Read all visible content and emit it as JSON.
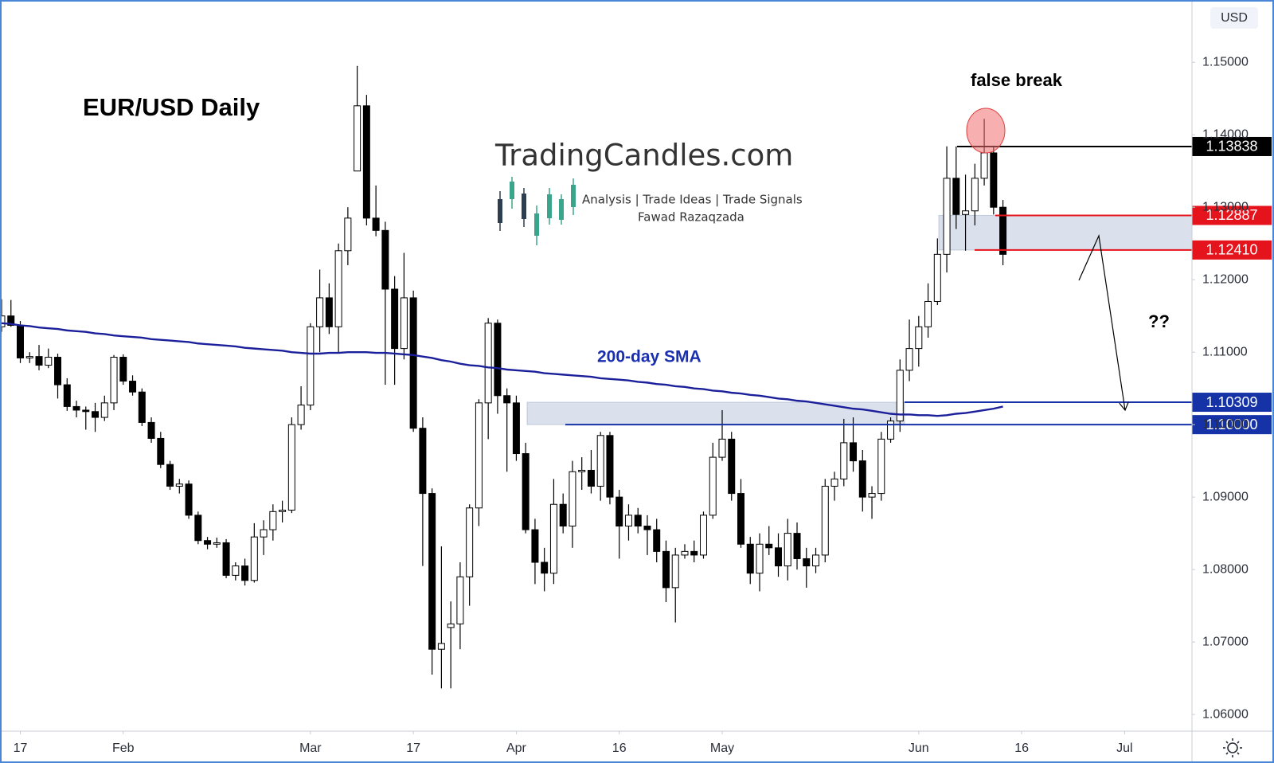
{
  "chart_data": {
    "type": "candlestick",
    "title": "EUR/USD Daily",
    "currency": "USD",
    "watermark": {
      "brand": "TradingCandles.com",
      "tagline": "Analysis | Trade Ideas | Trade Signals",
      "author": "Fawad Razaqzada"
    },
    "annotations": [
      {
        "text": "false break"
      },
      {
        "text": "??"
      }
    ],
    "up_color": "#ffffff",
    "down_color": "#000000",
    "x": [
      -2,
      -1,
      0,
      1,
      2,
      3,
      4,
      5,
      6,
      7,
      8,
      9,
      10,
      11,
      12,
      13,
      14,
      15,
      16,
      17,
      18,
      19,
      20,
      21,
      22,
      23,
      24,
      25,
      26,
      27,
      28,
      29,
      30,
      31,
      32,
      33,
      34,
      35,
      36,
      37,
      38,
      39,
      40,
      41,
      42,
      43,
      44,
      45,
      46,
      47,
      48,
      49,
      50,
      51,
      52,
      53,
      54,
      55,
      56,
      57,
      58,
      59,
      60,
      61,
      62,
      63,
      64,
      65,
      66,
      67,
      68,
      69,
      70,
      71,
      72,
      73,
      74,
      75,
      76,
      77,
      78,
      79,
      80,
      81,
      82,
      83,
      84,
      85,
      86,
      87,
      88,
      89,
      90,
      91,
      92,
      93,
      94,
      95,
      96,
      97,
      98,
      99,
      100,
      101,
      102,
      103,
      104,
      105
    ],
    "open": [
      1.1135,
      1.115,
      1.1137,
      1.1092,
      1.1094,
      1.1082,
      1.1093,
      1.1055,
      1.1025,
      1.102,
      1.1018,
      1.101,
      1.103,
      1.1093,
      1.106,
      1.1045,
      1.1003,
      1.0981,
      1.0945,
      1.0915,
      1.0918,
      1.0875,
      1.084,
      1.0835,
      1.0837,
      1.0792,
      1.0805,
      1.0785,
      1.0845,
      1.0855,
      1.088,
      1.0882,
      1.1,
      1.1027,
      1.1135,
      1.1175,
      1.1135,
      1.124,
      1.135,
      1.144,
      1.1285,
      1.1268,
      1.1187,
      1.1105,
      1.1175,
      1.0995,
      1.0905,
      1.069,
      1.072,
      1.0725,
      1.079,
      1.0885,
      1.103,
      1.114,
      1.104,
      1.103,
      1.096,
      1.0855,
      1.081,
      1.0795,
      1.089,
      1.086,
      1.0935,
      1.0937,
      1.0915,
      1.0985,
      1.09,
      1.086,
      1.0875,
      1.086,
      1.0855,
      1.0825,
      1.0775,
      1.082,
      1.0825,
      1.082,
      1.0875,
      1.0955,
      1.098,
      1.0905,
      1.0835,
      1.0795,
      1.0835,
      1.083,
      1.0805,
      1.085,
      1.0815,
      1.0805,
      1.082,
      1.0915,
      1.0925,
      1.0975,
      1.095,
      1.09,
      1.0905,
      1.098,
      1.1005,
      1.1075,
      1.1105,
      1.1135,
      1.117,
      1.1235,
      1.134,
      1.129,
      1.1295,
      1.134,
      1.1375,
      1.13
    ],
    "high": [
      1.1173,
      1.1172,
      1.1143,
      1.11,
      1.111,
      1.1105,
      1.1098,
      1.1064,
      1.1033,
      1.1025,
      1.103,
      1.104,
      1.1096,
      1.1097,
      1.1068,
      1.105,
      1.101,
      1.099,
      1.095,
      1.0925,
      1.0923,
      1.088,
      1.0845,
      1.0844,
      1.0842,
      1.081,
      1.0815,
      1.0864,
      1.0868,
      1.089,
      1.0895,
      1.101,
      1.1053,
      1.114,
      1.1214,
      1.1195,
      1.125,
      1.13,
      1.1495,
      1.1455,
      1.133,
      1.128,
      1.1205,
      1.1237,
      1.1185,
      1.101,
      1.0912,
      1.0832,
      1.0756,
      1.081,
      1.089,
      1.1035,
      1.1147,
      1.1145,
      1.105,
      1.104,
      1.0975,
      1.087,
      1.083,
      1.0925,
      1.0905,
      1.095,
      1.0955,
      1.0965,
      1.099,
      1.099,
      1.091,
      1.089,
      1.0885,
      1.0875,
      1.087,
      1.084,
      1.083,
      1.0835,
      1.084,
      1.088,
      1.0975,
      1.102,
      1.099,
      1.0925,
      1.0845,
      1.085,
      1.086,
      1.085,
      1.087,
      1.0865,
      1.083,
      1.083,
      1.0925,
      1.0935,
      1.1008,
      1.101,
      1.0965,
      1.0915,
      1.099,
      1.101,
      1.109,
      1.1145,
      1.115,
      1.1195,
      1.1257,
      1.1384,
      1.1384,
      1.1345,
      1.136,
      1.1422,
      1.1385,
      1.131
    ],
    "low": [
      1.1128,
      1.1135,
      1.1085,
      1.1085,
      1.1075,
      1.1078,
      1.1036,
      1.1019,
      1.101,
      1.0993,
      1.099,
      1.1005,
      1.102,
      1.1055,
      1.104,
      1.0998,
      1.0975,
      1.094,
      1.091,
      1.0905,
      1.087,
      1.0835,
      1.0828,
      1.083,
      1.0788,
      1.0785,
      1.0778,
      1.0782,
      1.082,
      1.084,
      1.0865,
      1.0878,
      1.0993,
      1.102,
      1.11,
      1.1125,
      1.11,
      1.122,
      1.135,
      1.1275,
      1.126,
      1.1055,
      1.1055,
      1.109,
      1.099,
      1.0805,
      1.0655,
      1.0636,
      1.0636,
      1.069,
      1.075,
      1.086,
      1.098,
      1.1015,
      1.0935,
      1.095,
      1.085,
      1.078,
      1.077,
      1.078,
      1.085,
      1.083,
      1.091,
      1.0905,
      1.0895,
      1.089,
      1.0815,
      1.084,
      1.085,
      1.082,
      1.081,
      1.0755,
      1.0727,
      1.0815,
      1.081,
      1.0815,
      1.087,
      1.095,
      1.0895,
      1.083,
      1.078,
      1.077,
      1.082,
      1.079,
      1.0785,
      1.08,
      1.0775,
      1.0795,
      1.081,
      1.0895,
      1.0915,
      1.0935,
      1.088,
      1.087,
      1.0895,
      1.0975,
      1.099,
      1.106,
      1.108,
      1.112,
      1.1165,
      1.121,
      1.127,
      1.124,
      1.1275,
      1.133,
      1.129,
      1.122
    ],
    "close": [
      1.115,
      1.1137,
      1.1092,
      1.1094,
      1.1082,
      1.1093,
      1.1055,
      1.1025,
      1.102,
      1.1018,
      1.101,
      1.103,
      1.1093,
      1.106,
      1.1045,
      1.1003,
      1.0981,
      1.0945,
      1.0915,
      1.0918,
      1.0875,
      1.084,
      1.0835,
      1.0837,
      1.0792,
      1.0805,
      1.0785,
      1.0845,
      1.0855,
      1.088,
      1.0882,
      1.1,
      1.1027,
      1.1135,
      1.1175,
      1.1135,
      1.124,
      1.1285,
      1.144,
      1.1285,
      1.1268,
      1.1187,
      1.1105,
      1.1175,
      1.0995,
      1.0905,
      1.069,
      1.0698,
      1.0725,
      1.079,
      1.0885,
      1.103,
      1.114,
      1.104,
      1.103,
      1.096,
      1.0855,
      1.081,
      1.0795,
      1.089,
      1.086,
      1.0935,
      1.0937,
      1.0915,
      1.0985,
      1.09,
      1.086,
      1.0875,
      1.086,
      1.0855,
      1.0825,
      1.0775,
      1.082,
      1.0825,
      1.082,
      1.0875,
      1.0955,
      1.098,
      1.0905,
      1.0835,
      1.0795,
      1.0835,
      1.083,
      1.0805,
      1.085,
      1.0815,
      1.0805,
      1.082,
      1.0915,
      1.0925,
      1.0975,
      1.095,
      1.09,
      1.0905,
      1.098,
      1.1005,
      1.1075,
      1.1105,
      1.1135,
      1.117,
      1.1235,
      1.134,
      1.129,
      1.1295,
      1.134,
      1.1375,
      1.13,
      1.1235
    ],
    "sma": {
      "name": "200-day SMA",
      "color": "#1b1f9a",
      "values": [
        1.114,
        1.1139,
        1.1137,
        1.1136,
        1.1134,
        1.1133,
        1.1132,
        1.113,
        1.1129,
        1.1128,
        1.1126,
        1.1125,
        1.1123,
        1.1122,
        1.1121,
        1.112,
        1.1118,
        1.1117,
        1.1116,
        1.1115,
        1.1114,
        1.1112,
        1.1111,
        1.111,
        1.1109,
        1.1108,
        1.1106,
        1.1105,
        1.1104,
        1.1103,
        1.1102,
        1.11,
        1.1099,
        1.1098,
        1.1098,
        1.1099,
        1.1099,
        1.11,
        1.11,
        1.11,
        1.1099,
        1.1099,
        1.1098,
        1.1097,
        1.1096,
        1.1094,
        1.1092,
        1.1089,
        1.1087,
        1.1084,
        1.1082,
        1.1081,
        1.1079,
        1.1078,
        1.1076,
        1.1075,
        1.1074,
        1.1073,
        1.1071,
        1.107,
        1.1069,
        1.1068,
        1.1067,
        1.1066,
        1.1064,
        1.1063,
        1.1062,
        1.1061,
        1.1059,
        1.1058,
        1.1056,
        1.1055,
        1.1053,
        1.1052,
        1.105,
        1.1049,
        1.1047,
        1.1046,
        1.1044,
        1.1043,
        1.1041,
        1.104,
        1.1038,
        1.1036,
        1.1035,
        1.1033,
        1.1032,
        1.103,
        1.1028,
        1.1026,
        1.1024,
        1.1022,
        1.1021,
        1.1019,
        1.1017,
        1.1015,
        1.1014,
        1.1014,
        1.1013,
        1.1013,
        1.1012,
        1.1013,
        1.1015,
        1.1016,
        1.1018,
        1.102,
        1.1022,
        1.1025
      ]
    },
    "levels": [
      {
        "value": 1.13838,
        "label": "1.13838",
        "color": "#000000"
      },
      {
        "value": 1.12887,
        "label": "1.12887",
        "color": "#e5141c"
      },
      {
        "value": 1.1241,
        "label": "1.12410",
        "color": "#e5141c"
      },
      {
        "value": 1.10309,
        "label": "1.10309",
        "color": "#1533a6"
      },
      {
        "value": 1.1,
        "label": "1.10000",
        "color": "#1533a6"
      }
    ],
    "zones": [
      {
        "from": 1.1,
        "to": 1.10309
      },
      {
        "from": 1.1241,
        "to": 1.12887
      }
    ],
    "xlim": [
      -2.17,
      125.2
    ],
    "ylim": [
      1.0577,
      1.1586
    ],
    "xticks": [
      {
        "value": 0,
        "label": "17"
      },
      {
        "value": 11,
        "label": "Feb"
      },
      {
        "value": 31,
        "label": "Mar"
      },
      {
        "value": 42,
        "label": "17"
      },
      {
        "value": 53,
        "label": "Apr"
      },
      {
        "value": 64,
        "label": "16"
      },
      {
        "value": 75,
        "label": "May"
      },
      {
        "value": 96,
        "label": "Jun"
      },
      {
        "value": 107,
        "label": "16"
      },
      {
        "value": 118,
        "label": "Jul"
      }
    ],
    "yticks": [
      {
        "value": 1.06,
        "label": "1.06000"
      },
      {
        "value": 1.07,
        "label": "1.07000"
      },
      {
        "value": 1.08,
        "label": "1.08000"
      },
      {
        "value": 1.09,
        "label": "1.09000"
      },
      {
        "value": 1.1,
        "label": "1.10000"
      },
      {
        "value": 1.11,
        "label": "1.11000"
      },
      {
        "value": 1.12,
        "label": "1.12000"
      },
      {
        "value": 1.13,
        "label": "1.13000"
      },
      {
        "value": 1.14,
        "label": "1.14000"
      },
      {
        "value": 1.15,
        "label": "1.15000"
      }
    ],
    "grid": false
  }
}
